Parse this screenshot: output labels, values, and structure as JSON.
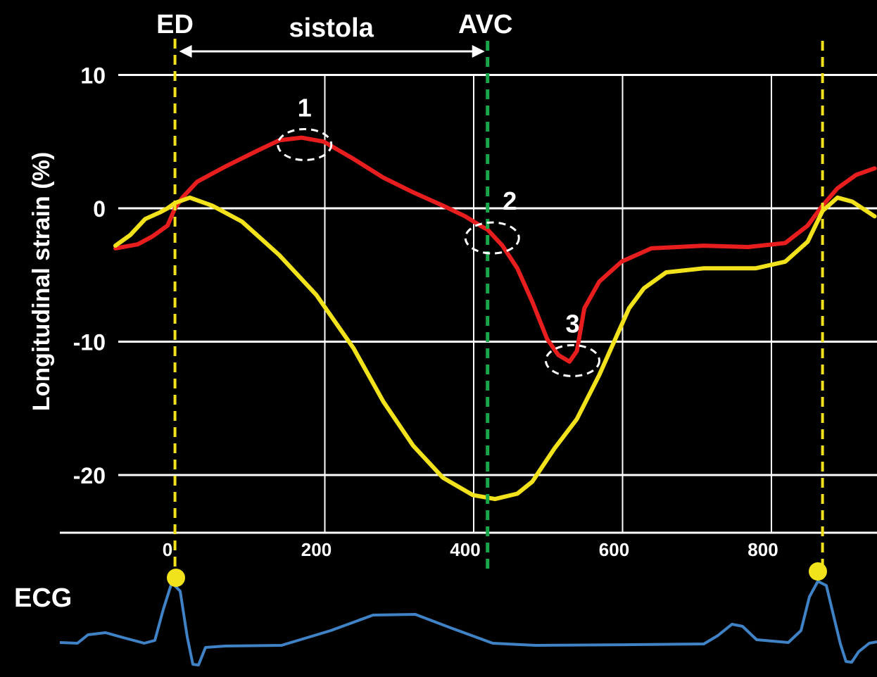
{
  "chart_data": {
    "type": "line",
    "ylabel": "Longitudinal strain (%)",
    "xlim": [
      -70,
      950
    ],
    "ylim": [
      -25,
      10
    ],
    "yticks": [
      10,
      0,
      -10,
      -20
    ],
    "ytick_labels": [
      "10",
      "0",
      "-10",
      "-20"
    ],
    "xticks": [
      0,
      200,
      400,
      600,
      800
    ],
    "xtick_labels": [
      "0",
      "200",
      "400",
      "600",
      "800"
    ],
    "grid": true,
    "markers": {
      "ed": {
        "label": "ED",
        "x": 10,
        "color": "#f2e21b"
      },
      "avc": {
        "label": "AVC",
        "x": 430,
        "color": "#1aa64a"
      },
      "next_ed": {
        "label": "",
        "x": 880,
        "color": "#f2e21b"
      }
    },
    "systole_label": "sistola",
    "annotations": [
      {
        "label": "1",
        "x": 170,
        "y": 5.2
      },
      {
        "label": "2",
        "x": 422,
        "y": -1.8
      },
      {
        "label": "3",
        "x": 530,
        "y": -11
      }
    ],
    "series": [
      {
        "color": "#e81e1e",
        "points": [
          [
            -70,
            -3.0
          ],
          [
            -40,
            -2.7
          ],
          [
            -20,
            -2.1
          ],
          [
            0,
            -1.3
          ],
          [
            10,
            0.0
          ],
          [
            20,
            0.8
          ],
          [
            40,
            2.0
          ],
          [
            80,
            3.2
          ],
          [
            120,
            4.3
          ],
          [
            150,
            5.1
          ],
          [
            180,
            5.3
          ],
          [
            210,
            5.0
          ],
          [
            250,
            3.7
          ],
          [
            290,
            2.3
          ],
          [
            330,
            1.2
          ],
          [
            370,
            0.2
          ],
          [
            400,
            -0.6
          ],
          [
            420,
            -1.3
          ],
          [
            430,
            -1.6
          ],
          [
            450,
            -2.8
          ],
          [
            470,
            -4.5
          ],
          [
            490,
            -7.0
          ],
          [
            510,
            -9.8
          ],
          [
            525,
            -11.0
          ],
          [
            540,
            -11.5
          ],
          [
            550,
            -10.7
          ],
          [
            560,
            -7.5
          ],
          [
            580,
            -5.5
          ],
          [
            610,
            -4.0
          ],
          [
            650,
            -3.0
          ],
          [
            720,
            -2.8
          ],
          [
            780,
            -2.9
          ],
          [
            830,
            -2.6
          ],
          [
            860,
            -1.3
          ],
          [
            880,
            0.2
          ],
          [
            900,
            1.5
          ],
          [
            925,
            2.5
          ],
          [
            950,
            3.0
          ]
        ]
      },
      {
        "color": "#f2e21b",
        "points": [
          [
            -70,
            -2.8
          ],
          [
            -50,
            -2.0
          ],
          [
            -30,
            -0.8
          ],
          [
            -10,
            -0.3
          ],
          [
            0,
            0.0
          ],
          [
            10,
            0.4
          ],
          [
            30,
            0.8
          ],
          [
            60,
            0.2
          ],
          [
            100,
            -1.0
          ],
          [
            150,
            -3.5
          ],
          [
            200,
            -6.5
          ],
          [
            250,
            -10.5
          ],
          [
            290,
            -14.5
          ],
          [
            330,
            -17.8
          ],
          [
            370,
            -20.2
          ],
          [
            410,
            -21.5
          ],
          [
            440,
            -21.8
          ],
          [
            470,
            -21.4
          ],
          [
            490,
            -20.5
          ],
          [
            520,
            -18.0
          ],
          [
            550,
            -15.8
          ],
          [
            580,
            -12.5
          ],
          [
            600,
            -10.0
          ],
          [
            620,
            -7.5
          ],
          [
            640,
            -6.0
          ],
          [
            670,
            -4.8
          ],
          [
            720,
            -4.5
          ],
          [
            790,
            -4.5
          ],
          [
            830,
            -4.0
          ],
          [
            860,
            -2.5
          ],
          [
            880,
            -0.2
          ],
          [
            900,
            0.8
          ],
          [
            920,
            0.5
          ],
          [
            950,
            -0.6
          ]
        ]
      }
    ]
  },
  "ecg": {
    "label": "ECG",
    "trace_color": "#3f82c5",
    "marker_color": "#f2e21b"
  }
}
